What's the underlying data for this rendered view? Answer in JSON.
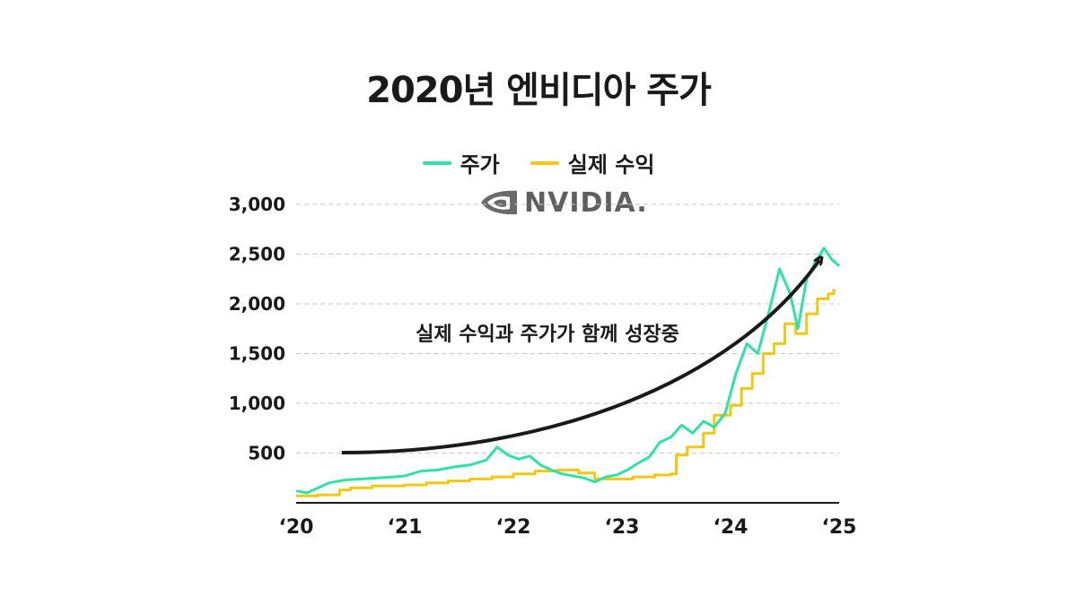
{
  "title": "2020년 엔비디아 주가",
  "legend": [
    {
      "label": "주가",
      "color": "#2fe3a6"
    },
    {
      "label": "실제 수익",
      "color": "#f2c811"
    }
  ],
  "logo": {
    "text": "NVIDIA.",
    "icon": "nvidia-eye-icon"
  },
  "colors": {
    "price": "#2fe3a6",
    "earnings": "#f2c811",
    "axis": "#1a1a1a",
    "grid": "#c8c8c8",
    "arrow": "#1a1a1a"
  },
  "chart_data": {
    "type": "line",
    "title": "2020년 엔비디아 주가",
    "xlabel": "",
    "ylabel": "",
    "xlim": [
      2020,
      2025
    ],
    "ylim": [
      0,
      3000
    ],
    "x_ticks": [
      "‘20",
      "‘21",
      "‘22",
      "‘23",
      "‘24",
      "‘25"
    ],
    "y_ticks": [
      "500",
      "1,000",
      "1,500",
      "2,000",
      "2,500",
      "3,000"
    ],
    "grid": "horizontal dashed",
    "legend_position": "top-center",
    "series": [
      {
        "name": "주가",
        "x": [
          2020.0,
          2020.1,
          2020.2,
          2020.3,
          2020.45,
          2020.6,
          2020.75,
          2020.9,
          2021.0,
          2021.15,
          2021.3,
          2021.45,
          2021.6,
          2021.75,
          2021.85,
          2021.95,
          2022.05,
          2022.15,
          2022.25,
          2022.35,
          2022.45,
          2022.55,
          2022.65,
          2022.75,
          2022.85,
          2022.95,
          2023.05,
          2023.15,
          2023.25,
          2023.35,
          2023.45,
          2023.55,
          2023.65,
          2023.75,
          2023.85,
          2023.95,
          2024.05,
          2024.15,
          2024.25,
          2024.35,
          2024.45,
          2024.55,
          2024.62,
          2024.7,
          2024.78,
          2024.86,
          2024.93,
          2025.0
        ],
        "values": [
          120,
          100,
          150,
          200,
          230,
          240,
          250,
          260,
          270,
          320,
          330,
          360,
          380,
          430,
          560,
          480,
          440,
          470,
          380,
          330,
          290,
          270,
          250,
          210,
          260,
          280,
          330,
          400,
          460,
          610,
          660,
          780,
          700,
          820,
          760,
          900,
          1300,
          1600,
          1500,
          1900,
          2350,
          2100,
          1750,
          2250,
          2420,
          2560,
          2450,
          2380
        ]
      },
      {
        "name": "실제 수익",
        "x": [
          2020.0,
          2020.2,
          2020.4,
          2020.5,
          2020.7,
          2021.0,
          2021.2,
          2021.4,
          2021.6,
          2021.8,
          2022.0,
          2022.2,
          2022.4,
          2022.6,
          2022.75,
          2022.9,
          2023.1,
          2023.3,
          2023.45,
          2023.5,
          2023.6,
          2023.75,
          2023.85,
          2024.0,
          2024.1,
          2024.2,
          2024.3,
          2024.4,
          2024.5,
          2024.6,
          2024.7,
          2024.8,
          2024.9,
          2024.95
        ],
        "values": [
          70,
          80,
          130,
          150,
          170,
          180,
          200,
          220,
          240,
          260,
          290,
          320,
          330,
          300,
          240,
          240,
          260,
          280,
          290,
          480,
          560,
          700,
          880,
          980,
          1150,
          1300,
          1500,
          1600,
          1800,
          1700,
          1900,
          2050,
          2100,
          2150
        ]
      }
    ],
    "annotations": [
      {
        "text": "실제 수익과 주가가 함께 성장중",
        "type": "trend-arrow"
      }
    ]
  }
}
